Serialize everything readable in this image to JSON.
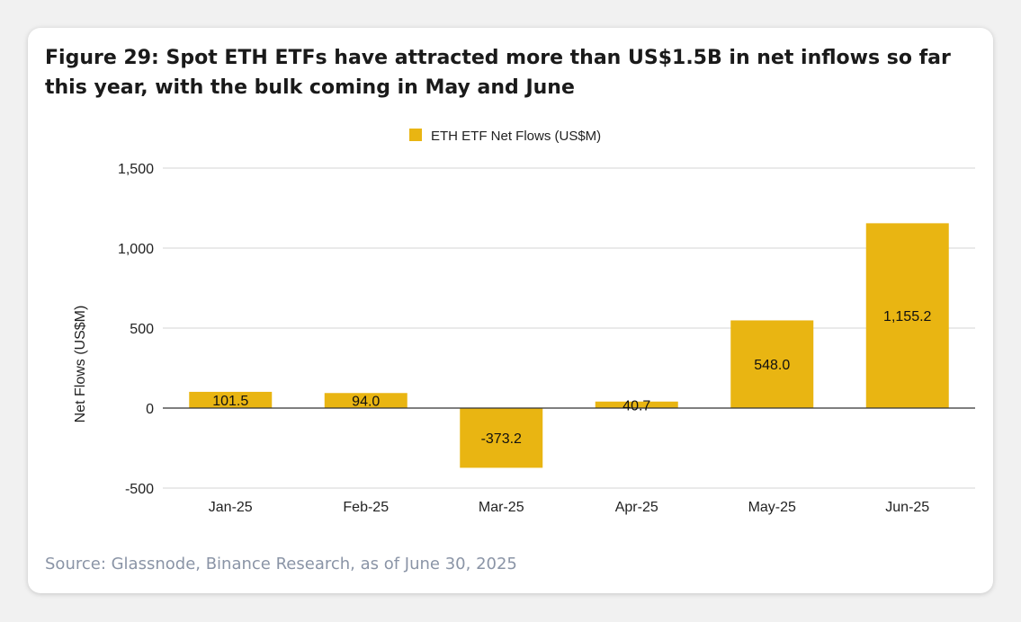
{
  "figure": {
    "title": "Figure 29: Spot ETH ETFs have attracted more than US$1.5B in net inflows so far this year, with the bulk coming in May and June",
    "source": "Source: Glassnode, Binance Research, as of June 30, 2025"
  },
  "colors": {
    "bar": "#E9B512",
    "grid": "#d6d6d6",
    "zero_line": "#333333"
  },
  "chart_data": {
    "type": "bar",
    "categories": [
      "Jan-25",
      "Feb-25",
      "Mar-25",
      "Apr-25",
      "May-25",
      "Jun-25"
    ],
    "series": [
      {
        "name": "ETH ETF Net Flows (US$M)",
        "values": [
          101.5,
          94.0,
          -373.2,
          40.7,
          548.0,
          1155.2
        ],
        "labels": [
          "101.5",
          "94.0",
          "-373.2",
          "40.7",
          "548.0",
          "1,155.2"
        ]
      }
    ],
    "title": "Figure 29: Spot ETH ETFs have attracted more than US$1.5B in net inflows so far this year, with the bulk coming in May and June",
    "xlabel": "",
    "ylabel": "Net Flows (US$M)",
    "ylim": [
      -500,
      1500
    ],
    "yticks": [
      1500,
      1000,
      500,
      0,
      -500
    ],
    "ytick_labels": [
      "1,500",
      "1,000",
      "500",
      "0",
      "-500"
    ],
    "grid": true,
    "legend_position": "top-center"
  }
}
